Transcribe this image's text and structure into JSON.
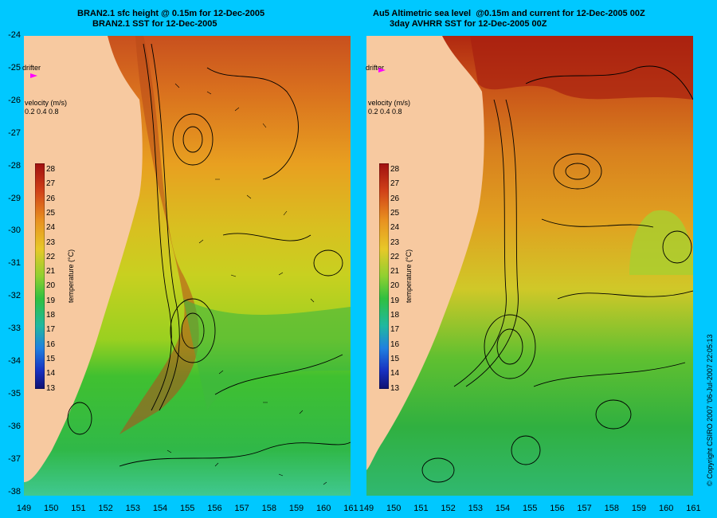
{
  "left_panel": {
    "title_line1": "BRAN2.1 sfc height @ 0.15m for 12-Dec-2005",
    "title_line2": "BRAN2.1 SST for 12-Dec-2005",
    "drifter_label": "drifter",
    "velocity_label": "velocity (m/s)",
    "velocity_scale": "0.2 0.4 0.8",
    "colorbar_title": "temperature (°C)"
  },
  "right_panel": {
    "title_line1": "Au5 Altimetric sea level  @0.15m and current for 12-Dec-2005 00Z",
    "title_line2": "3day AVHRR SST for 12-Dec-2005 00Z",
    "drifter_label": "drifter",
    "velocity_label": "velocity (m/s)",
    "velocity_scale": "0.2 0.4 0.8",
    "colorbar_title": "temperature (°C)"
  },
  "y_ticks": [
    "-24",
    "-25",
    "-26",
    "-27",
    "-28",
    "-29",
    "-30",
    "-31",
    "-32",
    "-33",
    "-34",
    "-35",
    "-36",
    "-37",
    "-38"
  ],
  "x_ticks_left": [
    "149",
    "150",
    "151",
    "152",
    "153",
    "154",
    "155",
    "156",
    "157",
    "158",
    "159",
    "160",
    "161"
  ],
  "x_ticks_right": [
    "149",
    "150",
    "151",
    "152",
    "153",
    "154",
    "155",
    "156",
    "157",
    "158",
    "159",
    "160",
    "161"
  ],
  "colorbar_ticks": [
    "28",
    "27",
    "26",
    "25",
    "24",
    "23",
    "22",
    "21",
    "20",
    "19",
    "18",
    "17",
    "16",
    "15",
    "14",
    "13"
  ],
  "copyright": "© Copyright CSIRO 2007 '06-Jul-2007 22:05:13",
  "colors": {
    "background": "#00c8ff",
    "land": "#f7c9a0",
    "drifter": "#ff00ff"
  }
}
